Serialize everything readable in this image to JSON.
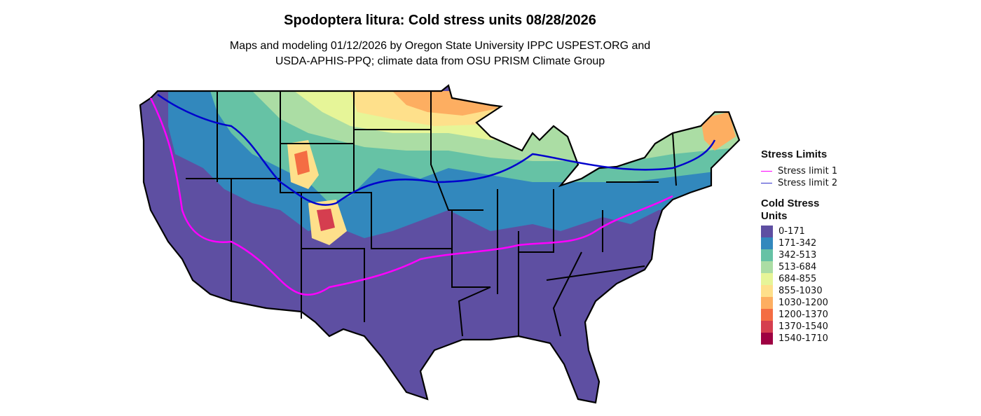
{
  "title": "Spodoptera litura: Cold stress units 08/28/2026",
  "subtitle_line1": "Maps and modeling 01/12/2026 by Oregon State University IPPC USPEST.ORG and",
  "subtitle_line2": "USDA-APHIS-PPQ; climate data from OSU PRISM Climate Group",
  "legend": {
    "stress_title": "Stress Limits",
    "stress_items": [
      {
        "label": "Stress limit 1",
        "color": "#FF00FF"
      },
      {
        "label": "Stress limit 2",
        "color": "#0000CD"
      }
    ],
    "units_title_1": "Cold Stress",
    "units_title_2": "Units",
    "units_items": [
      {
        "label": "0-171",
        "color": "#5E4FA2"
      },
      {
        "label": "171-342",
        "color": "#3288BD"
      },
      {
        "label": "342-513",
        "color": "#66C2A5"
      },
      {
        "label": "513-684",
        "color": "#ABDDA4"
      },
      {
        "label": "684-855",
        "color": "#E6F598"
      },
      {
        "label": "855-1030",
        "color": "#FEE08B"
      },
      {
        "label": "1030-1200",
        "color": "#FDAE61"
      },
      {
        "label": "1200-1370",
        "color": "#F46D43"
      },
      {
        "label": "1370-1540",
        "color": "#D53E4F"
      },
      {
        "label": "1540-1710",
        "color": "#9E0142"
      }
    ]
  }
}
